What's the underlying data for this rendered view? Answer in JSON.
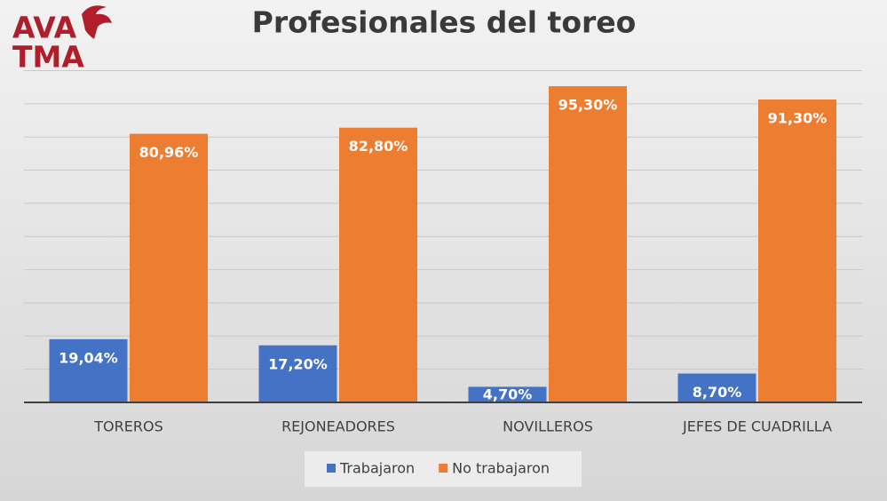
{
  "logo": {
    "line1": "AVA",
    "line2": "TMA"
  },
  "chart_data": {
    "type": "bar",
    "title": "Profesionales del toreo",
    "categories": [
      "TOREROS",
      "REJONEADORES",
      "NOVILLEROS",
      "JEFES DE CUADRILLA"
    ],
    "series": [
      {
        "name": "Trabajaron",
        "color": "#4472c4",
        "values": [
          19.04,
          17.2,
          4.7,
          8.7
        ],
        "value_labels": [
          "19,04%",
          "17,20%",
          "4,70%",
          "8,70%"
        ]
      },
      {
        "name": "No trabajaron",
        "color": "#ed7d31",
        "values": [
          80.96,
          82.8,
          95.3,
          91.3
        ],
        "value_labels": [
          "80,96%",
          "82,80%",
          "95,30%",
          "91,30%"
        ]
      }
    ],
    "ylim": [
      0,
      100
    ],
    "yticks": [
      0,
      10,
      20,
      30,
      40,
      50,
      60,
      70,
      80,
      90,
      100
    ],
    "grid": true,
    "legend": "bottom"
  }
}
